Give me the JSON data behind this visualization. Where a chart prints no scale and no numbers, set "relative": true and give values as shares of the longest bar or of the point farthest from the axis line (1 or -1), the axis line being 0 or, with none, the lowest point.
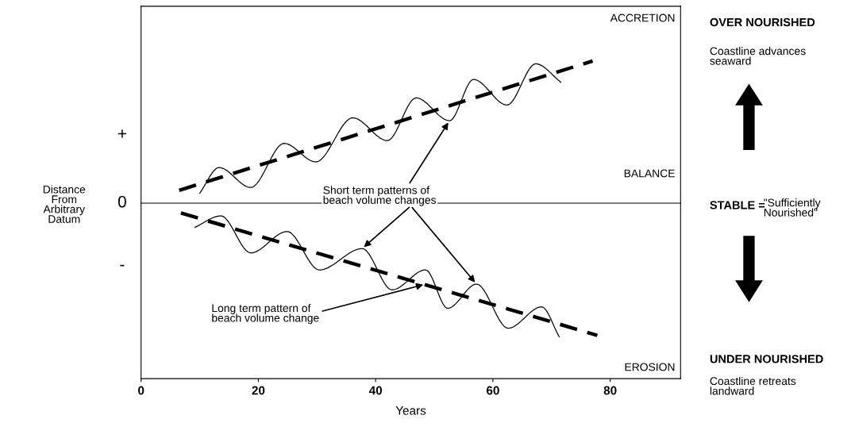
{
  "chart_data": {
    "type": "line",
    "relative": true,
    "xlabel": "Years",
    "ylabel": "Distance\nFrom\nArbitrary\nDatum",
    "xlim": [
      0,
      92
    ],
    "xticks": [
      0,
      20,
      40,
      60,
      80
    ],
    "series": [
      {
        "color": "#000000",
        "line_style": "solid",
        "x": [
          10.0,
          13.3,
          18.7,
          24.4,
          29.8,
          36.1,
          42.0,
          46.9,
          52.6,
          56.7,
          62.4,
          67.3,
          71.6
        ],
        "values": [
          0.07,
          0.25,
          0.11,
          0.42,
          0.29,
          0.6,
          0.44,
          0.74,
          0.58,
          0.87,
          0.69,
          0.98,
          0.85
        ]
      },
      {
        "color": "#000000",
        "line_style": "dashed",
        "x": [
          6.5,
          77.0
        ],
        "values": [
          0.09,
          1.0
        ]
      },
      {
        "color": "#000000",
        "line_style": "solid",
        "x": [
          9.2,
          13.6,
          18.7,
          24.9,
          30.4,
          37.7,
          42.8,
          48.5,
          52.3,
          57.2,
          62.6,
          68.3,
          71.3
        ],
        "values": [
          -0.17,
          -0.09,
          -0.35,
          -0.2,
          -0.47,
          -0.32,
          -0.61,
          -0.47,
          -0.74,
          -0.57,
          -0.88,
          -0.73,
          -0.94
        ]
      },
      {
        "color": "#000000",
        "line_style": "dashed",
        "x": [
          6.8,
          77.8
        ],
        "values": [
          -0.07,
          -0.93
        ]
      }
    ],
    "annotations": [
      "+",
      "0",
      "-",
      "ACCRETION",
      "BALANCE",
      "EROSION",
      {
        "text": "Short term patterns of\nbeach volume changes",
        "x": 52.6,
        "y": 0.58
      },
      {
        "text": "Long term pattern of\nbeach volume change",
        "x": 48.5,
        "y": -0.57
      },
      "OVER NOURISHED",
      "Coastline advances\nseaward",
      "STABLE =",
      "\"Sufficiently\nNourished\"",
      "UNDER NOURISHED",
      "Coastline retreats\nlandward"
    ]
  }
}
